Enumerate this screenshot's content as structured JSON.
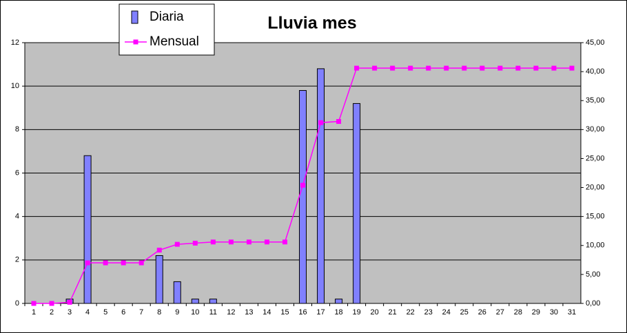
{
  "chart_data": {
    "type": "bar_line",
    "title": "Lluvia mes",
    "categories": [
      "1",
      "2",
      "3",
      "4",
      "5",
      "6",
      "7",
      "8",
      "9",
      "10",
      "11",
      "12",
      "13",
      "14",
      "15",
      "16",
      "17",
      "18",
      "19",
      "20",
      "21",
      "22",
      "23",
      "24",
      "25",
      "26",
      "27",
      "28",
      "29",
      "30",
      "31"
    ],
    "series": [
      {
        "name": "Diaria",
        "color": "#8080ff",
        "type": "bar",
        "values": [
          0,
          0,
          0.2,
          6.8,
          0,
          0,
          0,
          2.2,
          1.0,
          0.2,
          0.2,
          0,
          0,
          0,
          0,
          9.8,
          10.8,
          0.2,
          9.2,
          0,
          0,
          0,
          0,
          0,
          0,
          0,
          0,
          0,
          0,
          0,
          0
        ]
      },
      {
        "name": "Mensual",
        "color": "#ff00ff",
        "type": "line",
        "axis": "y2",
        "values": [
          0,
          0,
          0.2,
          7.0,
          7.0,
          7.0,
          7.0,
          9.2,
          10.2,
          10.4,
          10.6,
          10.6,
          10.6,
          10.6,
          10.6,
          20.4,
          31.2,
          31.4,
          40.6,
          40.6,
          40.6,
          40.6,
          40.6,
          40.6,
          40.6,
          40.6,
          40.6,
          40.6,
          40.6,
          40.6,
          40.6
        ]
      }
    ],
    "ylim": [
      0,
      12
    ],
    "yticks": [
      0,
      2,
      4,
      6,
      8,
      10,
      12
    ],
    "y2lim": [
      0,
      45
    ],
    "y2ticks": [
      {
        "value": 0,
        "label": "0,00"
      },
      {
        "value": 5,
        "label": "5,00"
      },
      {
        "value": 10,
        "label": "10,00"
      },
      {
        "value": 15,
        "label": "15,00"
      },
      {
        "value": 20,
        "label": "20,00"
      },
      {
        "value": 25,
        "label": "25,00"
      },
      {
        "value": 30,
        "label": "30,00"
      },
      {
        "value": 35,
        "label": "35,00"
      },
      {
        "value": 40,
        "label": "40,00"
      },
      {
        "value": 45,
        "label": "45,00"
      }
    ],
    "grid": true,
    "legend": "top-left"
  }
}
